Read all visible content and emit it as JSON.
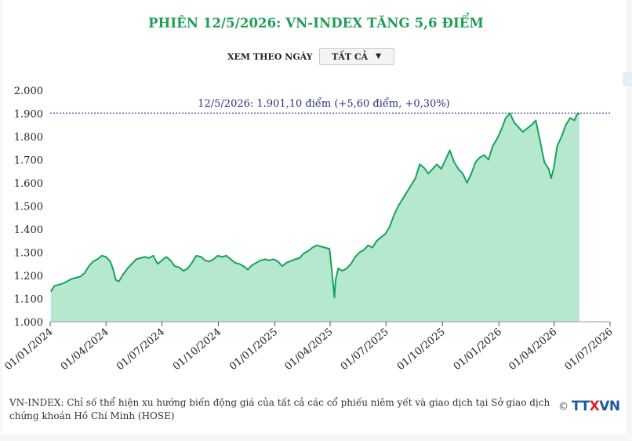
{
  "title": "PHIÊN 12/5/2026: VN-INDEX TĂNG 5,6 ĐIỂM",
  "filter": {
    "label": "XEM THEO NGÀY",
    "selected": "TẤT CẢ"
  },
  "footnote": "VN-INDEX: Chỉ số thể hiện xu hướng biến động giá của tất cả các cổ phiếu niêm yết và giao dịch tại Sở giao dịch chứng khoán Hồ Chí Minh (HOSE)",
  "logo": {
    "copyright": "©",
    "text_left": "TT",
    "text_x": "X",
    "text_right": "VN"
  },
  "colors": {
    "accent": "#1f9d55",
    "line": "#16a35a",
    "fill": "#b6e8cf",
    "annotation": "#2a2f8a"
  },
  "chart_data": {
    "type": "area",
    "title": "PHIÊN 12/5/2026: VN-INDEX TĂNG 5,6 ĐIỂM",
    "xlabel": "",
    "ylabel": "",
    "ylim": [
      1000,
      2000
    ],
    "yticks": [
      "1.000",
      "1.100",
      "1.200",
      "1.300",
      "1.400",
      "1.500",
      "1.600",
      "1.700",
      "1.800",
      "1.900",
      "2.000"
    ],
    "ytick_values": [
      1000,
      1100,
      1200,
      1300,
      1400,
      1500,
      1600,
      1700,
      1800,
      1900,
      2000
    ],
    "xlim": [
      "2024-01-01",
      "2026-07-01"
    ],
    "xticks": [
      "01/01/2024",
      "01/04/2024",
      "01/07/2024",
      "01/10/2024",
      "01/01/2025",
      "01/04/2025",
      "01/07/2025",
      "01/10/2025",
      "01/01/2026",
      "01/04/2026",
      "01/07/2026"
    ],
    "xtick_dates": [
      "2024-01-01",
      "2024-04-01",
      "2024-07-01",
      "2024-10-01",
      "2025-01-01",
      "2025-04-01",
      "2025-07-01",
      "2025-10-01",
      "2026-01-01",
      "2026-04-01",
      "2026-07-01"
    ],
    "grid": false,
    "reference_line": {
      "y": 1901.1,
      "style": "dotted"
    },
    "annotation": "12/5/2026: 1.901,10 điểm (+5,60 điểm, +0,30%)",
    "series": [
      {
        "x": [
          "2024-01-02",
          "2024-01-08",
          "2024-01-15",
          "2024-01-22",
          "2024-01-29",
          "2024-02-05",
          "2024-02-19",
          "2024-02-26",
          "2024-03-04",
          "2024-03-11",
          "2024-03-18",
          "2024-03-25",
          "2024-04-01",
          "2024-04-08",
          "2024-04-12",
          "2024-04-17",
          "2024-04-22",
          "2024-04-29",
          "2024-05-06",
          "2024-05-13",
          "2024-05-20",
          "2024-05-27",
          "2024-06-03",
          "2024-06-10",
          "2024-06-17",
          "2024-06-24",
          "2024-07-01",
          "2024-07-08",
          "2024-07-15",
          "2024-07-22",
          "2024-07-29",
          "2024-08-05",
          "2024-08-12",
          "2024-08-19",
          "2024-08-26",
          "2024-09-03",
          "2024-09-09",
          "2024-09-16",
          "2024-09-23",
          "2024-09-30",
          "2024-10-07",
          "2024-10-14",
          "2024-10-21",
          "2024-10-28",
          "2024-11-04",
          "2024-11-11",
          "2024-11-18",
          "2024-11-25",
          "2024-12-02",
          "2024-12-09",
          "2024-12-16",
          "2024-12-23",
          "2024-12-30",
          "2025-01-06",
          "2025-01-13",
          "2025-01-20",
          "2025-02-03",
          "2025-02-10",
          "2025-02-17",
          "2025-02-24",
          "2025-03-03",
          "2025-03-10",
          "2025-03-17",
          "2025-03-24",
          "2025-03-31",
          "2025-04-03",
          "2025-04-08",
          "2025-04-10",
          "2025-04-14",
          "2025-04-21",
          "2025-04-28",
          "2025-05-05",
          "2025-05-12",
          "2025-05-19",
          "2025-05-26",
          "2025-06-02",
          "2025-06-09",
          "2025-06-16",
          "2025-06-23",
          "2025-06-30",
          "2025-07-07",
          "2025-07-14",
          "2025-07-21",
          "2025-07-28",
          "2025-08-04",
          "2025-08-11",
          "2025-08-18",
          "2025-08-25",
          "2025-09-01",
          "2025-09-08",
          "2025-09-15",
          "2025-09-22",
          "2025-09-29",
          "2025-10-06",
          "2025-10-13",
          "2025-10-20",
          "2025-10-27",
          "2025-11-03",
          "2025-11-10",
          "2025-11-17",
          "2025-11-24",
          "2025-12-01",
          "2025-12-08",
          "2025-12-15",
          "2025-12-22",
          "2025-12-29",
          "2026-01-05",
          "2026-01-12",
          "2026-01-19",
          "2026-01-26",
          "2026-02-02",
          "2026-02-09",
          "2026-02-23",
          "2026-03-02",
          "2026-03-09",
          "2026-03-16",
          "2026-03-23",
          "2026-03-27",
          "2026-03-31",
          "2026-04-06",
          "2026-04-13",
          "2026-04-20",
          "2026-04-27",
          "2026-05-04",
          "2026-05-08",
          "2026-05-12"
        ],
        "values": [
          1130,
          1155,
          1160,
          1165,
          1175,
          1185,
          1195,
          1210,
          1240,
          1260,
          1270,
          1285,
          1280,
          1260,
          1230,
          1180,
          1175,
          1205,
          1230,
          1250,
          1270,
          1275,
          1280,
          1275,
          1285,
          1250,
          1265,
          1280,
          1265,
          1240,
          1235,
          1220,
          1230,
          1255,
          1285,
          1280,
          1265,
          1260,
          1270,
          1285,
          1280,
          1285,
          1270,
          1255,
          1250,
          1240,
          1225,
          1245,
          1255,
          1265,
          1270,
          1265,
          1270,
          1260,
          1240,
          1255,
          1270,
          1275,
          1295,
          1305,
          1320,
          1330,
          1325,
          1320,
          1315,
          1240,
          1105,
          1180,
          1230,
          1220,
          1230,
          1250,
          1280,
          1300,
          1310,
          1330,
          1320,
          1350,
          1365,
          1380,
          1410,
          1460,
          1500,
          1530,
          1560,
          1590,
          1620,
          1680,
          1665,
          1640,
          1660,
          1680,
          1660,
          1700,
          1740,
          1690,
          1660,
          1640,
          1600,
          1640,
          1690,
          1710,
          1720,
          1700,
          1760,
          1790,
          1830,
          1880,
          1900,
          1860,
          1840,
          1820,
          1850,
          1870,
          1780,
          1690,
          1660,
          1620,
          1660,
          1760,
          1800,
          1850,
          1880,
          1870,
          1895,
          1901.1
        ]
      }
    ]
  }
}
